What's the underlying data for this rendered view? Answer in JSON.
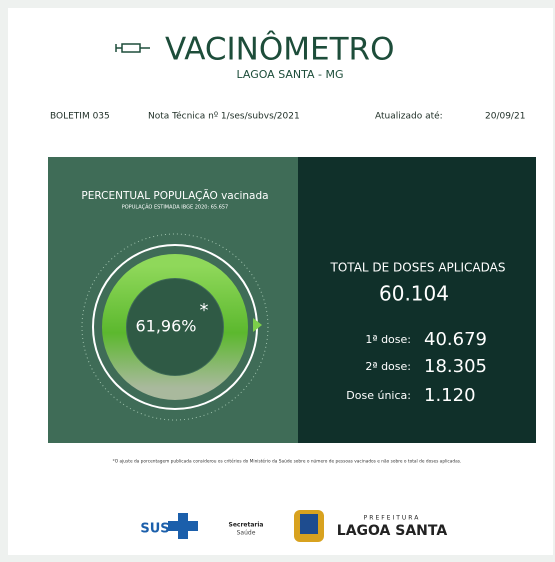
{
  "header": {
    "title": "VACINÔMETRO",
    "subtitle": "LAGOA SANTA - MG"
  },
  "info": {
    "bulletin": "BOLETIM 035",
    "note": "Nota Técnica nº 1/ses/subvs/2021",
    "updated_label": "Atualizado até:",
    "date": "20/09/21"
  },
  "left_panel": {
    "title_main": "PERCENTUAL POPULAÇÃO",
    "title_accent": "vacinada",
    "subtitle": "POPULAÇÃO ESTIMADA IBGE 2020: 65.657",
    "percent": "61,96%",
    "asterisk": "*"
  },
  "right_panel": {
    "total_label": "TOTAL DE DOSES APLICADAS",
    "total": "60.104",
    "doses": [
      {
        "label": "1ª dose:",
        "value": "40.679"
      },
      {
        "label": "2ª dose:",
        "value": "18.305"
      },
      {
        "label": "Dose única:",
        "value": "1.120"
      }
    ]
  },
  "footnote": "*O ajuste da porcentagem publicada considerou os critérios do Ministério da Saúde sobre o número de pessoas vacinados e não sobre o total de doses aplicadas.",
  "footer": {
    "sus": "SUS",
    "secretaria_1": "Secretaria",
    "secretaria_2": "Saúde",
    "prefeitura": "PREFEITURA",
    "city": "LAGOA SANTA"
  }
}
